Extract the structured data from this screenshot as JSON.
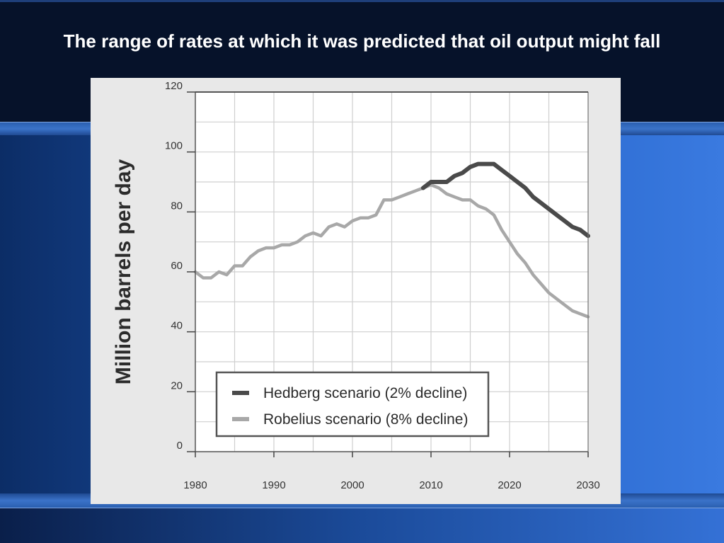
{
  "slide": {
    "title": "The range of rates at which it was predicted that oil output might fall"
  },
  "chart_data": {
    "type": "line",
    "title": "",
    "xlabel": "",
    "ylabel": "Million barrels per day",
    "xlim": [
      1980,
      2030
    ],
    "ylim": [
      0,
      120
    ],
    "x_ticks": [
      "1980",
      "1990",
      "2000",
      "2010",
      "2020",
      "2030"
    ],
    "y_ticks": [
      "0",
      "20",
      "40",
      "60",
      "80",
      "100",
      "120"
    ],
    "grid": true,
    "legend_position": "bottom-left",
    "series": [
      {
        "name": "Robelius scenario (8% decline)",
        "color": "#a8a8a8",
        "points": [
          [
            1980,
            60
          ],
          [
            1981,
            58
          ],
          [
            1982,
            58
          ],
          [
            1983,
            60
          ],
          [
            1984,
            59
          ],
          [
            1985,
            62
          ],
          [
            1986,
            62
          ],
          [
            1987,
            65
          ],
          [
            1988,
            67
          ],
          [
            1989,
            68
          ],
          [
            1990,
            68
          ],
          [
            1991,
            69
          ],
          [
            1992,
            69
          ],
          [
            1993,
            70
          ],
          [
            1994,
            72
          ],
          [
            1995,
            73
          ],
          [
            1996,
            72
          ],
          [
            1997,
            75
          ],
          [
            1998,
            76
          ],
          [
            1999,
            75
          ],
          [
            2000,
            77
          ],
          [
            2001,
            78
          ],
          [
            2002,
            78
          ],
          [
            2003,
            79
          ],
          [
            2004,
            84
          ],
          [
            2005,
            84
          ],
          [
            2006,
            85
          ],
          [
            2007,
            86
          ],
          [
            2008,
            87
          ],
          [
            2009,
            88
          ],
          [
            2010,
            89
          ],
          [
            2011,
            88
          ],
          [
            2012,
            86
          ],
          [
            2013,
            85
          ],
          [
            2014,
            84
          ],
          [
            2015,
            84
          ],
          [
            2016,
            82
          ],
          [
            2017,
            81
          ],
          [
            2018,
            79
          ],
          [
            2019,
            74
          ],
          [
            2020,
            70
          ],
          [
            2021,
            66
          ],
          [
            2022,
            63
          ],
          [
            2023,
            59
          ],
          [
            2024,
            56
          ],
          [
            2025,
            53
          ],
          [
            2026,
            51
          ],
          [
            2027,
            49
          ],
          [
            2028,
            47
          ],
          [
            2029,
            46
          ],
          [
            2030,
            45
          ]
        ]
      },
      {
        "name": "Hedberg scenario (2% decline)",
        "color": "#4a4a4a",
        "points": [
          [
            2009,
            88
          ],
          [
            2010,
            90
          ],
          [
            2011,
            90
          ],
          [
            2012,
            90
          ],
          [
            2013,
            92
          ],
          [
            2014,
            93
          ],
          [
            2015,
            95
          ],
          [
            2016,
            96
          ],
          [
            2017,
            96
          ],
          [
            2018,
            96
          ],
          [
            2019,
            94
          ],
          [
            2020,
            92
          ],
          [
            2021,
            90
          ],
          [
            2022,
            88
          ],
          [
            2023,
            85
          ],
          [
            2024,
            83
          ],
          [
            2025,
            81
          ],
          [
            2026,
            79
          ],
          [
            2027,
            77
          ],
          [
            2028,
            75
          ],
          [
            2029,
            74
          ],
          [
            2030,
            72
          ]
        ]
      }
    ],
    "legend": [
      "Hedberg scenario (2% decline)",
      "Robelius scenario (8% decline)"
    ]
  }
}
